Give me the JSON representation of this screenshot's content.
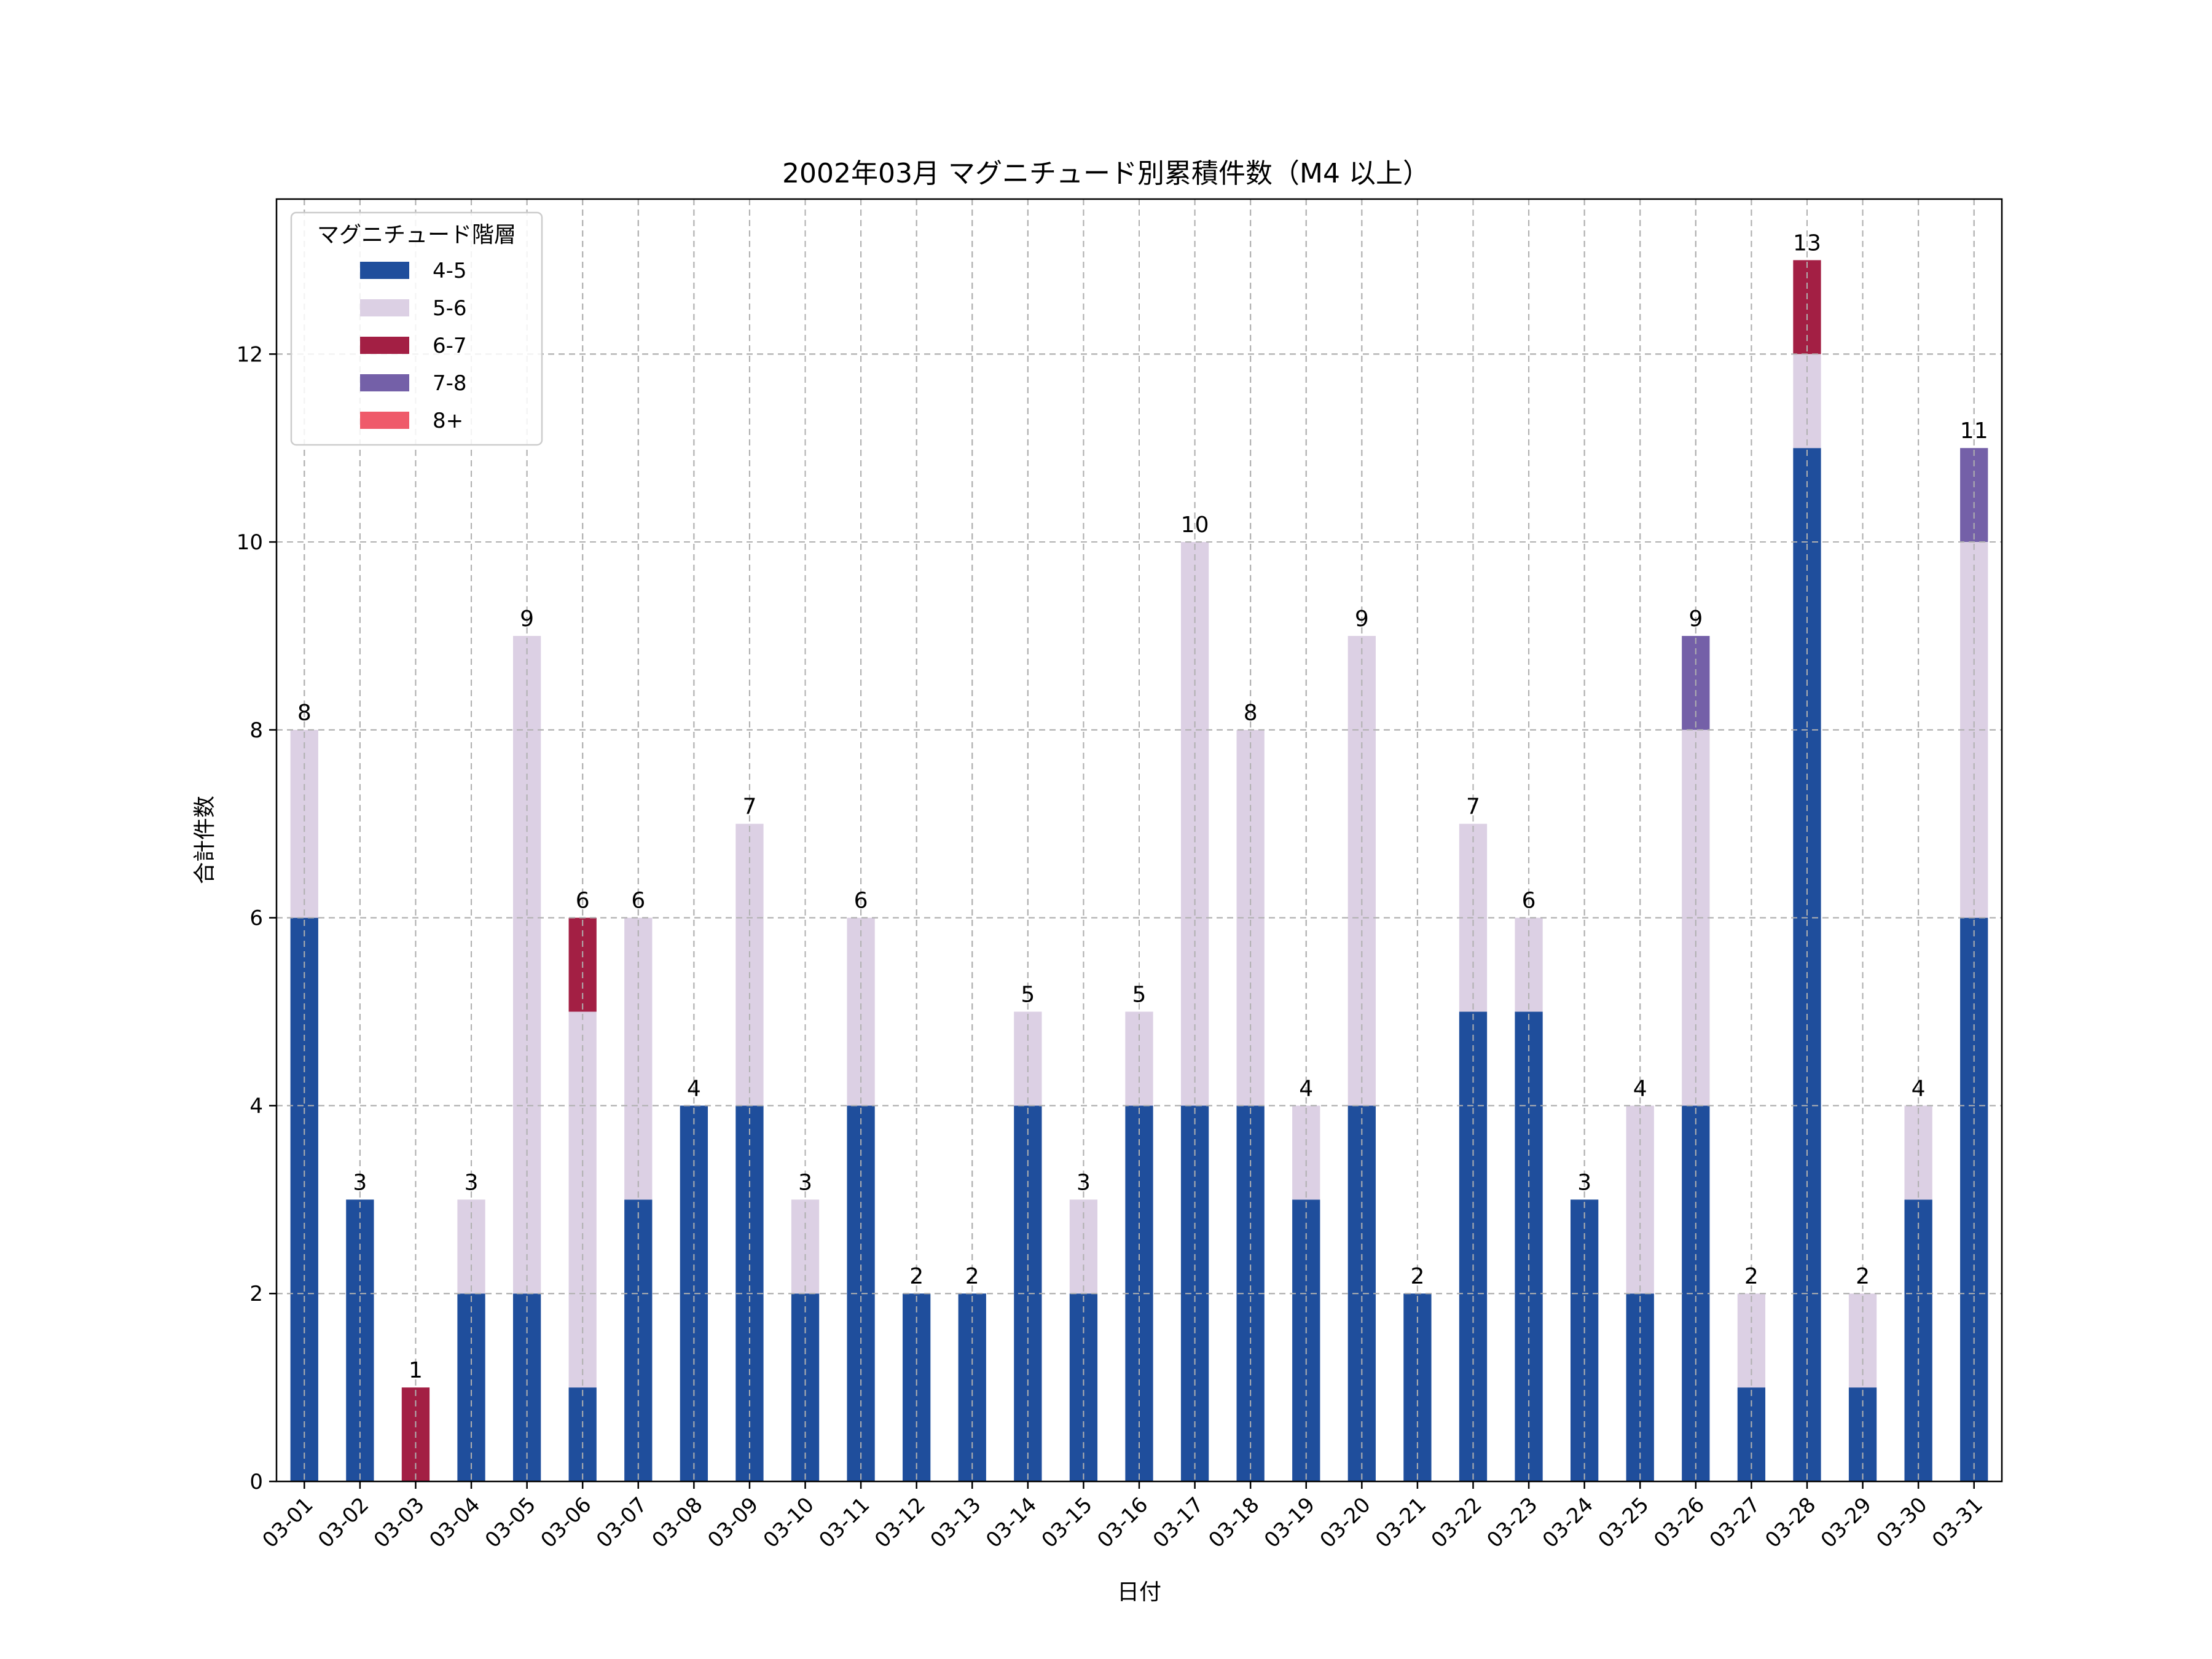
{
  "chart_data": {
    "type": "bar",
    "stacked": true,
    "title": "2002年03月 マグニチュード別累積件数（M4 以上）",
    "xlabel": "日付",
    "ylabel": "合計件数",
    "ylim": [
      0,
      13.65
    ],
    "yticks": [
      0,
      2,
      4,
      6,
      8,
      10,
      12
    ],
    "grid": true,
    "legend_title": "マグニチュード階層",
    "legend_position": "top-left",
    "categories": [
      "03-01",
      "03-02",
      "03-03",
      "03-04",
      "03-05",
      "03-06",
      "03-07",
      "03-08",
      "03-09",
      "03-10",
      "03-11",
      "03-12",
      "03-13",
      "03-14",
      "03-15",
      "03-16",
      "03-17",
      "03-18",
      "03-19",
      "03-20",
      "03-21",
      "03-22",
      "03-23",
      "03-24",
      "03-25",
      "03-26",
      "03-27",
      "03-28",
      "03-29",
      "03-30",
      "03-31"
    ],
    "series": [
      {
        "name": "4-5",
        "color": "#1f4e9c",
        "values": [
          6,
          3,
          0,
          2,
          2,
          1,
          3,
          4,
          4,
          2,
          4,
          2,
          2,
          4,
          2,
          4,
          4,
          4,
          3,
          4,
          2,
          5,
          5,
          3,
          2,
          4,
          1,
          11,
          1,
          3,
          6
        ]
      },
      {
        "name": "5-6",
        "color": "#dcd0e4",
        "values": [
          2,
          0,
          0,
          1,
          7,
          4,
          3,
          0,
          3,
          1,
          2,
          0,
          0,
          1,
          1,
          1,
          6,
          4,
          1,
          5,
          0,
          2,
          1,
          0,
          2,
          4,
          1,
          1,
          1,
          1,
          4
        ]
      },
      {
        "name": "6-7",
        "color": "#a31f44",
        "values": [
          0,
          0,
          1,
          0,
          0,
          1,
          0,
          0,
          0,
          0,
          0,
          0,
          0,
          0,
          0,
          0,
          0,
          0,
          0,
          0,
          0,
          0,
          0,
          0,
          0,
          0,
          0,
          1,
          0,
          0,
          0
        ]
      },
      {
        "name": "7-8",
        "color": "#7460a8",
        "values": [
          0,
          0,
          0,
          0,
          0,
          0,
          0,
          0,
          0,
          0,
          0,
          0,
          0,
          0,
          0,
          0,
          0,
          0,
          0,
          0,
          0,
          0,
          0,
          0,
          0,
          1,
          0,
          0,
          0,
          0,
          1
        ]
      },
      {
        "name": "8+",
        "color": "#ef5a6a",
        "values": [
          0,
          0,
          0,
          0,
          0,
          0,
          0,
          0,
          0,
          0,
          0,
          0,
          0,
          0,
          0,
          0,
          0,
          0,
          0,
          0,
          0,
          0,
          0,
          0,
          0,
          0,
          0,
          0,
          0,
          0,
          0
        ]
      }
    ],
    "totals": [
      8,
      3,
      1,
      3,
      9,
      6,
      6,
      4,
      7,
      3,
      6,
      2,
      2,
      5,
      3,
      5,
      10,
      8,
      4,
      9,
      2,
      7,
      6,
      3,
      4,
      9,
      2,
      13,
      2,
      4,
      11
    ]
  }
}
